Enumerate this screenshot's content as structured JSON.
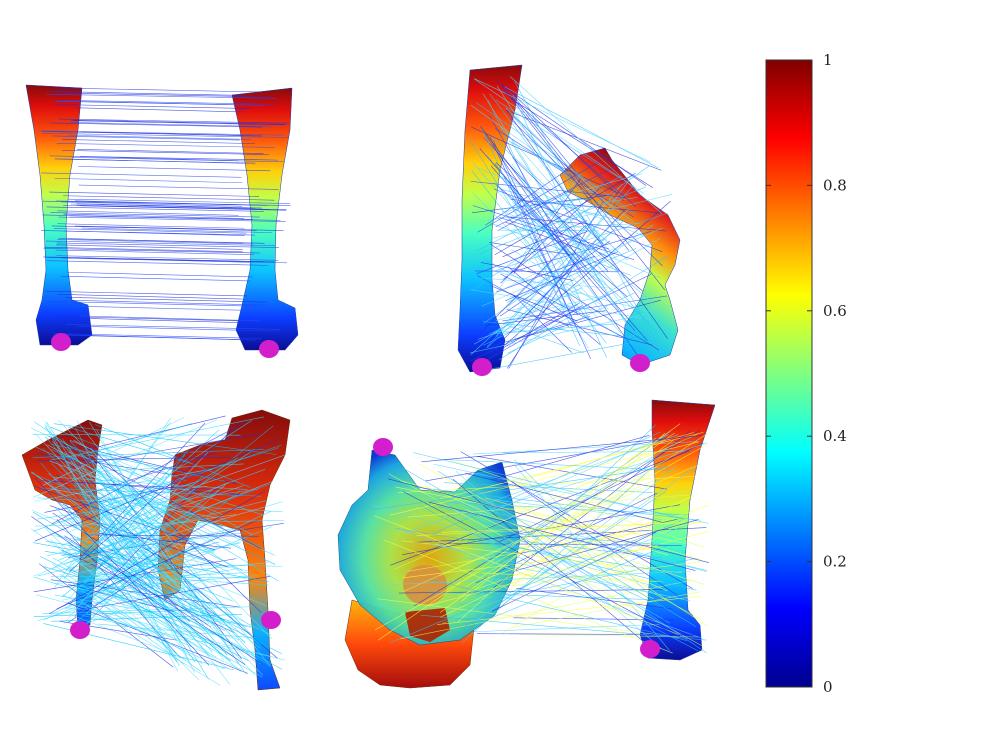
{
  "panels": [
    {
      "id": "panel-top-left",
      "left_mesh": "leg",
      "right_mesh": "leg"
    },
    {
      "id": "panel-top-right",
      "left_mesh": "leg",
      "right_mesh": "bent-leg"
    },
    {
      "id": "panel-bottom-left",
      "left_mesh": "animal-body",
      "right_mesh": "animal-body"
    },
    {
      "id": "panel-bottom-right",
      "left_mesh": "wolf-head",
      "right_mesh": "leg"
    }
  ],
  "colorbar": {
    "colormap": "jet",
    "min": 0,
    "max": 1,
    "ticks": [
      "0",
      "0.2",
      "0.4",
      "0.6",
      "0.8",
      "1"
    ],
    "tick_values": [
      0,
      0.2,
      0.4,
      0.6,
      0.8,
      1
    ]
  },
  "colors": {
    "feature_point": "#d21fcb",
    "correspondence_line": "#1f2ee0",
    "jet_low": "#00008f",
    "jet_high": "#800000"
  }
}
